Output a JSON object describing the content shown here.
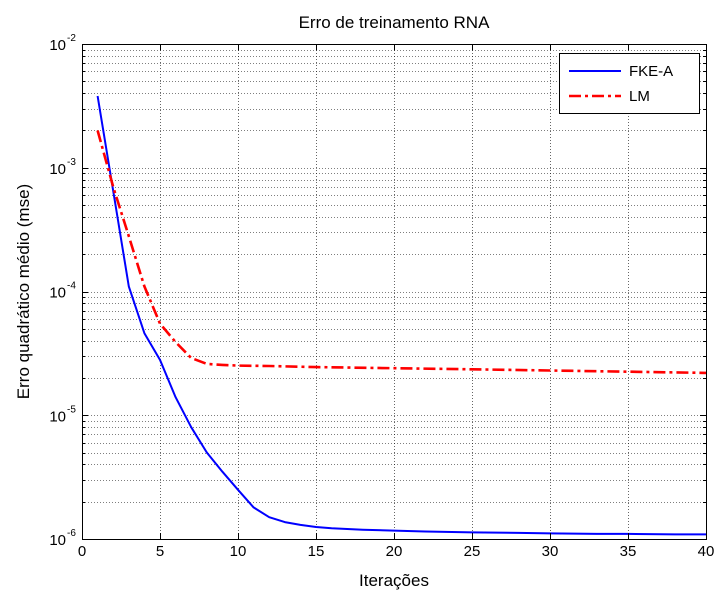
{
  "chart_data": {
    "type": "line",
    "title": "Erro de treinamento RNA",
    "xlabel": "Iterações",
    "ylabel": "Erro quadrático médio (mse)",
    "xlim": [
      0,
      40
    ],
    "ylim": [
      1e-06,
      0.01
    ],
    "yscale": "log",
    "grid": true,
    "legend_position": "top-right",
    "x_ticks": [
      0,
      5,
      10,
      15,
      20,
      25,
      30,
      35,
      40
    ],
    "x_tick_labels": [
      "0",
      "5",
      "10",
      "15",
      "20",
      "25",
      "30",
      "35",
      "40"
    ],
    "y_ticks": [
      {
        "base": "10",
        "exp": "-6"
      },
      {
        "base": "10",
        "exp": "-5"
      },
      {
        "base": "10",
        "exp": "-4"
      },
      {
        "base": "10",
        "exp": "-3"
      },
      {
        "base": "10",
        "exp": "-2"
      }
    ],
    "series": [
      {
        "name": "FKE-A",
        "color": "#0000ff",
        "style": "solid",
        "x": [
          1,
          2,
          3,
          4,
          5,
          6,
          7,
          8,
          9,
          10,
          11,
          12,
          13,
          14,
          15,
          16,
          18,
          20,
          22,
          25,
          28,
          30,
          33,
          35,
          38,
          40
        ],
        "y": [
          0.0038,
          0.00065,
          0.00011,
          4.6e-05,
          2.8e-05,
          1.4e-05,
          8e-06,
          5e-06,
          3.5e-06,
          2.5e-06,
          1.8e-06,
          1.5e-06,
          1.37e-06,
          1.3e-06,
          1.25e-06,
          1.22e-06,
          1.19e-06,
          1.17e-06,
          1.15e-06,
          1.13e-06,
          1.12e-06,
          1.11e-06,
          1.1e-06,
          1.1e-06,
          1.09e-06,
          1.09e-06
        ]
      },
      {
        "name": "LM",
        "color": "#ff0000",
        "style": "dashdot",
        "x": [
          1,
          2,
          3,
          4,
          5,
          6,
          7,
          8,
          9,
          10,
          12,
          15,
          20,
          25,
          30,
          35,
          40
        ],
        "y": [
          0.002,
          0.0007,
          0.00028,
          0.00011,
          5.5e-05,
          3.9e-05,
          2.9e-05,
          2.6e-05,
          2.55e-05,
          2.52e-05,
          2.5e-05,
          2.45e-05,
          2.4e-05,
          2.35e-05,
          2.3e-05,
          2.25e-05,
          2.2e-05
        ]
      }
    ]
  }
}
